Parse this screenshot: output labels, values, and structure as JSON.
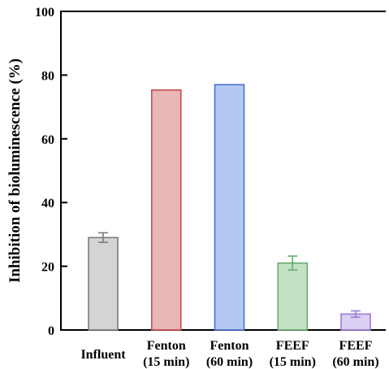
{
  "chart_data": {
    "type": "bar",
    "ylabel": "Inhibition of bioluminescence (%)",
    "ylim": [
      0,
      100
    ],
    "yticks": [
      0,
      20,
      40,
      60,
      80,
      100
    ],
    "categories": [
      [
        "Influent"
      ],
      [
        "Fenton",
        "(15 min)"
      ],
      [
        "Fenton",
        "(60 min)"
      ],
      [
        "FEEF",
        "(15 min)"
      ],
      [
        "FEEF",
        "(60 min)"
      ]
    ],
    "values": [
      29,
      75.3,
      77,
      21,
      5
    ],
    "errors": [
      1.5,
      0,
      0,
      2.2,
      1
    ],
    "fill_colors": [
      "#d4d4d4",
      "#e8b8b8",
      "#b4c8f2",
      "#c2e2c4",
      "#dcd0f3"
    ],
    "stroke_colors": [
      "#7a7a7a",
      "#c84a4a",
      "#4a6ed8",
      "#6aa870",
      "#9a7ad8"
    ],
    "grid": false,
    "legend": "none"
  }
}
